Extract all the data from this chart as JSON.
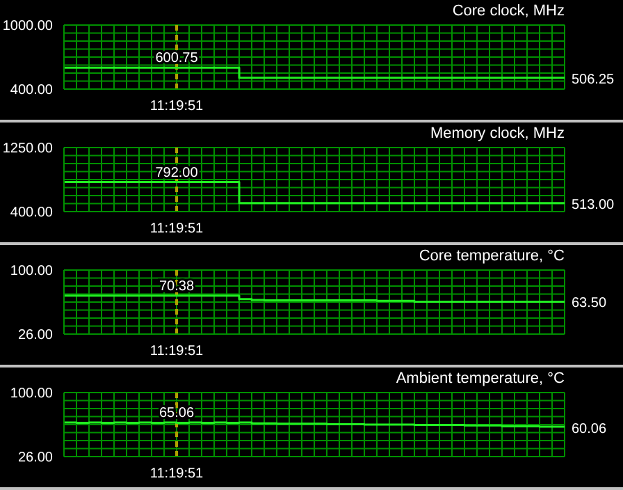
{
  "chart_data": [
    {
      "type": "step",
      "title": "Core clock, MHz",
      "categories": [
        null,
        null,
        null,
        null,
        null,
        null,
        null,
        null,
        null,
        "11:19:51",
        null,
        null,
        null,
        null,
        null,
        null,
        null,
        null,
        null,
        null,
        null,
        null,
        null,
        null,
        null,
        null,
        null,
        null,
        null,
        null,
        null,
        null,
        null,
        null,
        null,
        null,
        null,
        null,
        null,
        null,
        null
      ],
      "values": [
        600.75,
        600.75,
        600.75,
        600.75,
        600.75,
        600.75,
        600.75,
        600.75,
        600.75,
        600.75,
        600.75,
        600.75,
        600.75,
        600.75,
        506.25,
        506.25,
        506.25,
        506.25,
        506.25,
        506.25,
        506.25,
        506.25,
        506.25,
        506.25,
        506.25,
        506.25,
        506.25,
        506.25,
        506.25,
        506.25,
        506.25,
        506.25,
        506.25,
        506.25,
        506.25,
        506.25,
        506.25,
        506.25,
        506.25,
        506.25,
        506.25
      ],
      "value_labels": [
        null,
        null,
        null,
        null,
        null,
        null,
        null,
        null,
        null,
        "600.75",
        null,
        null,
        null,
        null,
        null,
        null,
        null,
        null,
        null,
        null,
        null,
        null,
        null,
        null,
        null,
        null,
        null,
        null,
        null,
        null,
        null,
        null,
        null,
        null,
        null,
        null,
        null,
        null,
        null,
        null,
        "506.25"
      ],
      "color": "#22ee22",
      "ylim": [
        400,
        1000
      ],
      "yticks": [
        {
          "value": 400,
          "label": "400.00"
        },
        {
          "value": 1000,
          "label": "1000.00"
        }
      ],
      "grid": true,
      "ref_lines": [
        {
          "axis": "x",
          "value": "11:19:51",
          "color": "#b0a000",
          "line_style": "dashed"
        }
      ]
    },
    {
      "type": "step",
      "title": "Memory clock, MHz",
      "categories": [
        null,
        null,
        null,
        null,
        null,
        null,
        null,
        null,
        null,
        "11:19:51",
        null,
        null,
        null,
        null,
        null,
        null,
        null,
        null,
        null,
        null,
        null,
        null,
        null,
        null,
        null,
        null,
        null,
        null,
        null,
        null,
        null,
        null,
        null,
        null,
        null,
        null,
        null,
        null,
        null,
        null,
        null
      ],
      "values": [
        792,
        792,
        792,
        792,
        792,
        792,
        792,
        792,
        792,
        792,
        792,
        792,
        792,
        792,
        513,
        513,
        513,
        513,
        513,
        513,
        513,
        513,
        513,
        513,
        513,
        513,
        513,
        513,
        513,
        513,
        513,
        513,
        513,
        513,
        513,
        513,
        513,
        513,
        513,
        513,
        513
      ],
      "value_labels": [
        null,
        null,
        null,
        null,
        null,
        null,
        null,
        null,
        null,
        "792.00",
        null,
        null,
        null,
        null,
        null,
        null,
        null,
        null,
        null,
        null,
        null,
        null,
        null,
        null,
        null,
        null,
        null,
        null,
        null,
        null,
        null,
        null,
        null,
        null,
        null,
        null,
        null,
        null,
        null,
        null,
        "513.00"
      ],
      "color": "#22ee22",
      "ylim": [
        400,
        1250
      ],
      "yticks": [
        {
          "value": 400,
          "label": "400.00"
        },
        {
          "value": 1250,
          "label": "1250.00"
        }
      ],
      "grid": true,
      "ref_lines": [
        {
          "axis": "x",
          "value": "11:19:51",
          "color": "#b0a000",
          "line_style": "dashed"
        }
      ]
    },
    {
      "type": "step",
      "title": "Core temperature, °C",
      "categories": [
        null,
        null,
        null,
        null,
        null,
        null,
        null,
        null,
        null,
        "11:19:51",
        null,
        null,
        null,
        null,
        null,
        null,
        null,
        null,
        null,
        null,
        null,
        null,
        null,
        null,
        null,
        null,
        null,
        null,
        null,
        null,
        null,
        null,
        null,
        null,
        null,
        null,
        null,
        null,
        null,
        null,
        null
      ],
      "values": [
        70.38,
        70.38,
        70.38,
        70.38,
        70.38,
        70.38,
        70.38,
        70.38,
        70.38,
        70.38,
        70.38,
        70.38,
        70.38,
        70.38,
        66.5,
        65.5,
        65,
        65,
        65,
        65,
        65,
        65,
        65,
        65,
        65,
        64.5,
        64.5,
        64.5,
        63.5,
        63.5,
        63.5,
        63.5,
        63.5,
        63.5,
        63.5,
        63.5,
        63.5,
        63.5,
        63.5,
        63.5,
        63.5
      ],
      "value_labels": [
        null,
        null,
        null,
        null,
        null,
        null,
        null,
        null,
        null,
        "70.38",
        null,
        null,
        null,
        null,
        null,
        null,
        null,
        null,
        null,
        null,
        null,
        null,
        null,
        null,
        null,
        null,
        null,
        null,
        null,
        null,
        null,
        null,
        null,
        null,
        null,
        null,
        null,
        null,
        null,
        null,
        "63.50"
      ],
      "color": "#22ee22",
      "ylim": [
        26,
        100
      ],
      "yticks": [
        {
          "value": 26,
          "label": "26.00"
        },
        {
          "value": 100,
          "label": "100.00"
        }
      ],
      "grid": true,
      "ref_lines": [
        {
          "axis": "x",
          "value": "11:19:51",
          "color": "#b0a000",
          "line_style": "dashed"
        }
      ]
    },
    {
      "type": "step",
      "title": "Ambient temperature, °C",
      "categories": [
        null,
        null,
        null,
        null,
        null,
        null,
        null,
        null,
        null,
        "11:19:51",
        null,
        null,
        null,
        null,
        null,
        null,
        null,
        null,
        null,
        null,
        null,
        null,
        null,
        null,
        null,
        null,
        null,
        null,
        null,
        null,
        null,
        null,
        null,
        null,
        null,
        null,
        null,
        null,
        null,
        null,
        null
      ],
      "values": [
        65.5,
        65,
        65.5,
        65,
        65.5,
        65,
        65.5,
        65,
        65.5,
        65.06,
        65.5,
        65,
        65.5,
        65,
        65.5,
        64.5,
        64.5,
        64,
        64,
        64,
        64,
        63.5,
        63.5,
        63.5,
        63,
        63,
        63,
        63,
        62.5,
        62.5,
        62.5,
        62.5,
        62,
        62,
        62,
        61,
        61,
        61,
        60.5,
        60.5,
        60.06
      ],
      "value_labels": [
        null,
        null,
        null,
        null,
        null,
        null,
        null,
        null,
        null,
        "65.06",
        null,
        null,
        null,
        null,
        null,
        null,
        null,
        null,
        null,
        null,
        null,
        null,
        null,
        null,
        null,
        null,
        null,
        null,
        null,
        null,
        null,
        null,
        null,
        null,
        null,
        null,
        null,
        null,
        null,
        null,
        "60.06"
      ],
      "color": "#22ee22",
      "ylim": [
        26,
        100
      ],
      "yticks": [
        {
          "value": 26,
          "label": "26.00"
        },
        {
          "value": 100,
          "label": "100.00"
        }
      ],
      "grid": true,
      "ref_lines": [
        {
          "axis": "x",
          "value": "11:19:51",
          "color": "#b0a000",
          "line_style": "dashed"
        }
      ]
    }
  ]
}
